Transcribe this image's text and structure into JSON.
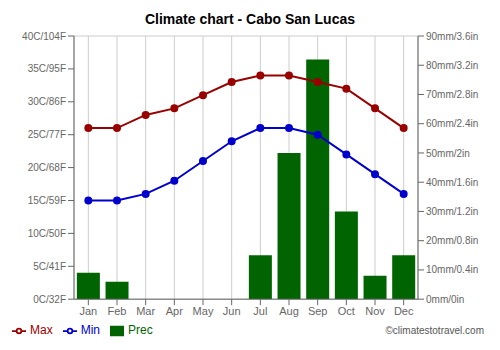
{
  "chart_data": {
    "type": "combo",
    "title": "Climate chart - Cabo San Lucas",
    "categories": [
      "Jan",
      "Feb",
      "Mar",
      "Apr",
      "May",
      "Jun",
      "Jul",
      "Aug",
      "Sep",
      "Oct",
      "Nov",
      "Dec"
    ],
    "series": [
      {
        "name": "Prec",
        "type": "bar",
        "axis": "y2",
        "color": "#006400",
        "values": [
          9,
          6,
          0,
          0,
          0,
          0,
          15,
          50,
          82,
          30,
          8,
          15
        ]
      },
      {
        "name": "Min",
        "type": "line",
        "color": "#0000CC",
        "marker": "circle",
        "values": [
          15,
          15,
          16,
          18,
          21,
          24,
          26,
          26,
          25,
          22,
          19,
          16
        ]
      },
      {
        "name": "Max",
        "type": "line",
        "color": "#990000",
        "marker": "circle",
        "values": [
          26,
          26,
          28,
          29,
          31,
          33,
          34,
          34,
          33,
          32,
          29,
          26
        ]
      }
    ],
    "ylim": [
      0,
      40
    ],
    "yticks": [
      {
        "value": 0,
        "label": "0C/32F"
      },
      {
        "value": 5,
        "label": "5C/41F"
      },
      {
        "value": 10,
        "label": "10C/50F"
      },
      {
        "value": 15,
        "label": "15C/59F"
      },
      {
        "value": 20,
        "label": "20C/68F"
      },
      {
        "value": 25,
        "label": "25C/77F"
      },
      {
        "value": 30,
        "label": "30C/86F"
      },
      {
        "value": 35,
        "label": "35C/95F"
      },
      {
        "value": 40,
        "label": "40C/104F"
      }
    ],
    "y2lim": [
      0,
      90
    ],
    "y2ticks": [
      {
        "value": 0,
        "label": "0mm/0in"
      },
      {
        "value": 10,
        "label": "10mm/0.4in"
      },
      {
        "value": 20,
        "label": "20mm/0.8in"
      },
      {
        "value": 30,
        "label": "30mm/1.2in"
      },
      {
        "value": 40,
        "label": "40mm/1.6in"
      },
      {
        "value": 50,
        "label": "50mm/2in"
      },
      {
        "value": 60,
        "label": "60mm/2.4in"
      },
      {
        "value": 70,
        "label": "70mm/2.8in"
      },
      {
        "value": 80,
        "label": "80mm/3.2in"
      },
      {
        "value": 90,
        "label": "90mm/3.6in"
      }
    ],
    "grid": true,
    "legend": "bottom",
    "annotations": [
      "©climatestotravel.com"
    ]
  }
}
